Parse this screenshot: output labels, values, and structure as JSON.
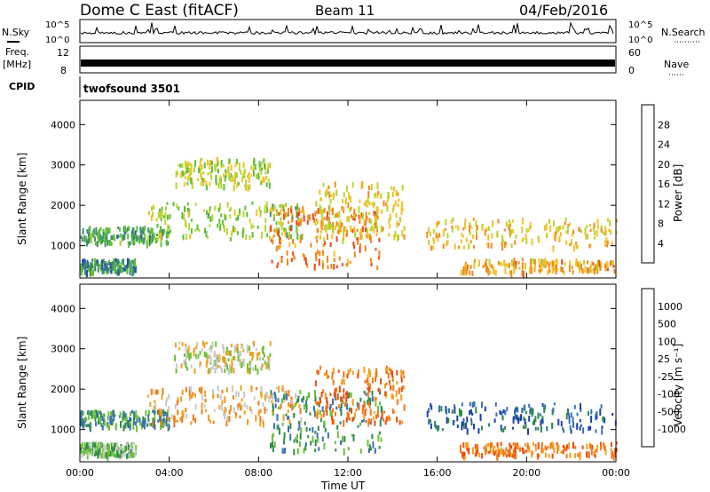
{
  "header": {
    "station": "Dome C East (fitACF)",
    "beam": "Beam 11",
    "date": "04/Feb/2016"
  },
  "strip": {
    "nsky_label": "N.Sky",
    "nsearch_label": "N.Search",
    "freq_label_line1": "Freq.",
    "freq_label_line2": "[MHz]",
    "nave_label": "Nave",
    "cpid_label": "CPID",
    "cpid_value": "twofsound 3501",
    "noise_ticks": [
      "10^5",
      "10^0"
    ],
    "freq_ticks": [
      "12",
      "8"
    ],
    "nave_ticks": [
      "60",
      "0"
    ]
  },
  "colors": {
    "power_scale": [
      "#1a1aff",
      "#2a4fa8",
      "#3d8c6e",
      "#5fbf3a",
      "#b8d430",
      "#f2c22a",
      "#f08a1e",
      "#e8461a",
      "#e02010"
    ],
    "velocity_scale": [
      "#1d3fae",
      "#3a6fb8",
      "#2f8a4a",
      "#6cc23a",
      "#c8c8c4",
      "#f0a020",
      "#f07818",
      "#e84c12",
      "#e01010"
    ]
  },
  "chart_data": [
    {
      "type": "heatmap",
      "title": "Power",
      "xlabel": "Time UT",
      "ylabel": "Slant Range [km]",
      "xticks": [
        "00:00",
        "04:00",
        "08:00",
        "12:00",
        "16:00",
        "20:00",
        "00:00"
      ],
      "yticks": [
        "1000",
        "2000",
        "3000",
        "4000"
      ],
      "xlim": [
        0,
        24
      ],
      "ylim": [
        200,
        4600
      ],
      "colorbar": {
        "label": "Power [dB]",
        "ticks": [
          "4",
          "8",
          "12",
          "16",
          "20",
          "24",
          "28"
        ],
        "range": [
          0,
          32
        ]
      },
      "regions": [
        {
          "t0": 0.0,
          "t1": 4.0,
          "r0": 1100,
          "r1": 1500,
          "level": 10
        },
        {
          "t0": 0.0,
          "t1": 2.5,
          "r0": 380,
          "r1": 700,
          "level": 8
        },
        {
          "t0": 4.2,
          "t1": 8.5,
          "r0": 2500,
          "r1": 3200,
          "level": 16
        },
        {
          "t0": 3.0,
          "t1": 10.0,
          "r0": 1200,
          "r1": 2100,
          "level": 14
        },
        {
          "t0": 8.5,
          "t1": 13.5,
          "r0": 500,
          "r1": 2000,
          "level": 25
        },
        {
          "t0": 10.5,
          "t1": 14.5,
          "r0": 1200,
          "r1": 2600,
          "level": 19
        },
        {
          "t0": 15.5,
          "t1": 24.0,
          "r0": 1000,
          "r1": 1700,
          "level": 20
        },
        {
          "t0": 17.0,
          "t1": 24.0,
          "r0": 380,
          "r1": 700,
          "level": 22
        }
      ]
    },
    {
      "type": "heatmap",
      "title": "Velocity",
      "xlabel": "Time UT",
      "ylabel": "Slant Range [km]",
      "xticks": [
        "00:00",
        "04:00",
        "08:00",
        "12:00",
        "16:00",
        "20:00",
        "00:00"
      ],
      "yticks": [
        "1000",
        "2000",
        "3000",
        "4000"
      ],
      "xlim": [
        0,
        24
      ],
      "ylim": [
        200,
        4600
      ],
      "colorbar": {
        "label": "Velocity [m s⁻¹]",
        "ticks": [
          "1000",
          "500",
          "100",
          "25",
          "-25",
          "-100",
          "-500",
          "-1000"
        ],
        "range": [
          1000,
          -1000
        ]
      },
      "regions": [
        {
          "t0": 0.0,
          "t1": 4.0,
          "r0": 1100,
          "r1": 1500,
          "level": 2
        },
        {
          "t0": 0.0,
          "t1": 2.5,
          "r0": 380,
          "r1": 700,
          "level": 3
        },
        {
          "t0": 4.2,
          "t1": 8.5,
          "r0": 2500,
          "r1": 3200,
          "level": 4
        },
        {
          "t0": 3.0,
          "t1": 10.0,
          "r0": 1200,
          "r1": 2100,
          "level": 5
        },
        {
          "t0": 8.5,
          "t1": 13.5,
          "r0": 500,
          "r1": 2000,
          "level": 2
        },
        {
          "t0": 10.5,
          "t1": 14.5,
          "r0": 1200,
          "r1": 2600,
          "level": 6
        },
        {
          "t0": 15.5,
          "t1": 24.0,
          "r0": 1000,
          "r1": 1700,
          "level": 1
        },
        {
          "t0": 17.0,
          "t1": 24.0,
          "r0": 380,
          "r1": 700,
          "level": 6
        }
      ]
    }
  ]
}
